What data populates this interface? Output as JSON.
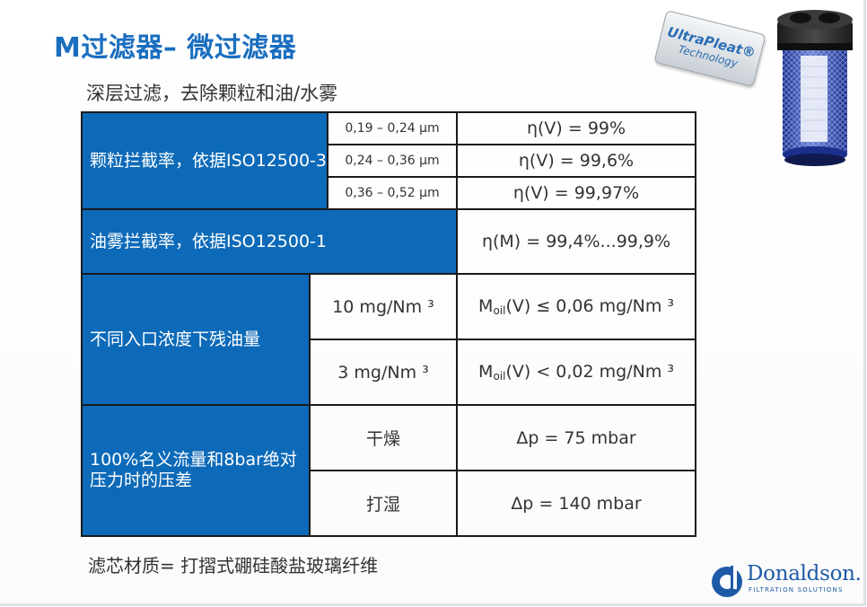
{
  "title": "M过滤器– 微过滤器",
  "subtitle": "深层过滤，去除颗粒和油/水雾",
  "badge": {
    "line1": "UltraPleat®",
    "line2": "Technology"
  },
  "table": {
    "particle": {
      "label": "颗粒拦截率，依据ISO12500-3",
      "rows": [
        {
          "range": "0,19 – 0,24 µm",
          "value": "η(V) = 99%"
        },
        {
          "range": "0,24 – 0,36 µm",
          "value": "η(V) = 99,6%"
        },
        {
          "range": "0,36 – 0,52 µm",
          "value": "η(V) = 99,97%"
        }
      ]
    },
    "oil_mist": {
      "label": "油雾拦截率，依据ISO12500-1",
      "value": "η(M) = 99,4%...99,9%"
    },
    "residual_oil": {
      "label": "不同入口浓度下残油量",
      "rows": [
        {
          "inlet": "10 mg/Nm ³",
          "prefix": "M",
          "sub": "oil",
          "rest": "(V) ≤ 0,06 mg/Nm ³"
        },
        {
          "inlet": "3 mg/Nm ³",
          "prefix": "M",
          "sub": "oil",
          "rest": "(V) < 0,02 mg/Nm ³"
        }
      ]
    },
    "pressure_drop": {
      "label": "100%名义流量和8bar绝对压力时的压差",
      "rows": [
        {
          "condition": "干燥",
          "value": "Δp = 75 mbar"
        },
        {
          "condition": "打湿",
          "value": "Δp = 140 mbar"
        }
      ]
    }
  },
  "footnote": "滤芯材质= 打摺式硼硅酸盐玻璃纤维",
  "logo": {
    "name": "Donaldson.",
    "tagline": "FILTRATION SOLUTIONS",
    "color": "#1f5aa6"
  },
  "colors": {
    "title": "#1a6ebf",
    "header_fill": "#0d6ab8"
  }
}
